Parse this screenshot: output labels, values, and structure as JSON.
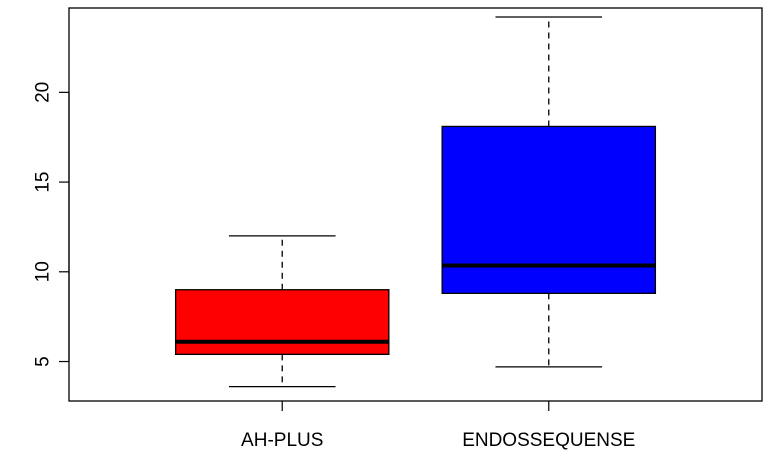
{
  "chart_data": {
    "type": "boxplot",
    "title": "",
    "xlabel": "",
    "ylabel": "",
    "ylim": [
      2.8,
      24.7
    ],
    "y_ticks": [
      5,
      10,
      15,
      20
    ],
    "categories": [
      "AH-PLUS",
      "ENDOSSEQUENSE"
    ],
    "boxes": [
      {
        "category": "AH-PLUS",
        "color": "#ff0000",
        "whisker_low": 3.6,
        "q1": 5.4,
        "median": 6.1,
        "q3": 9.0,
        "whisker_high": 12.0
      },
      {
        "category": "ENDOSSEQUENSE",
        "color": "#0000ff",
        "whisker_low": 4.7,
        "q1": 8.8,
        "median": 10.35,
        "q3": 18.1,
        "whisker_high": 24.2
      }
    ]
  }
}
